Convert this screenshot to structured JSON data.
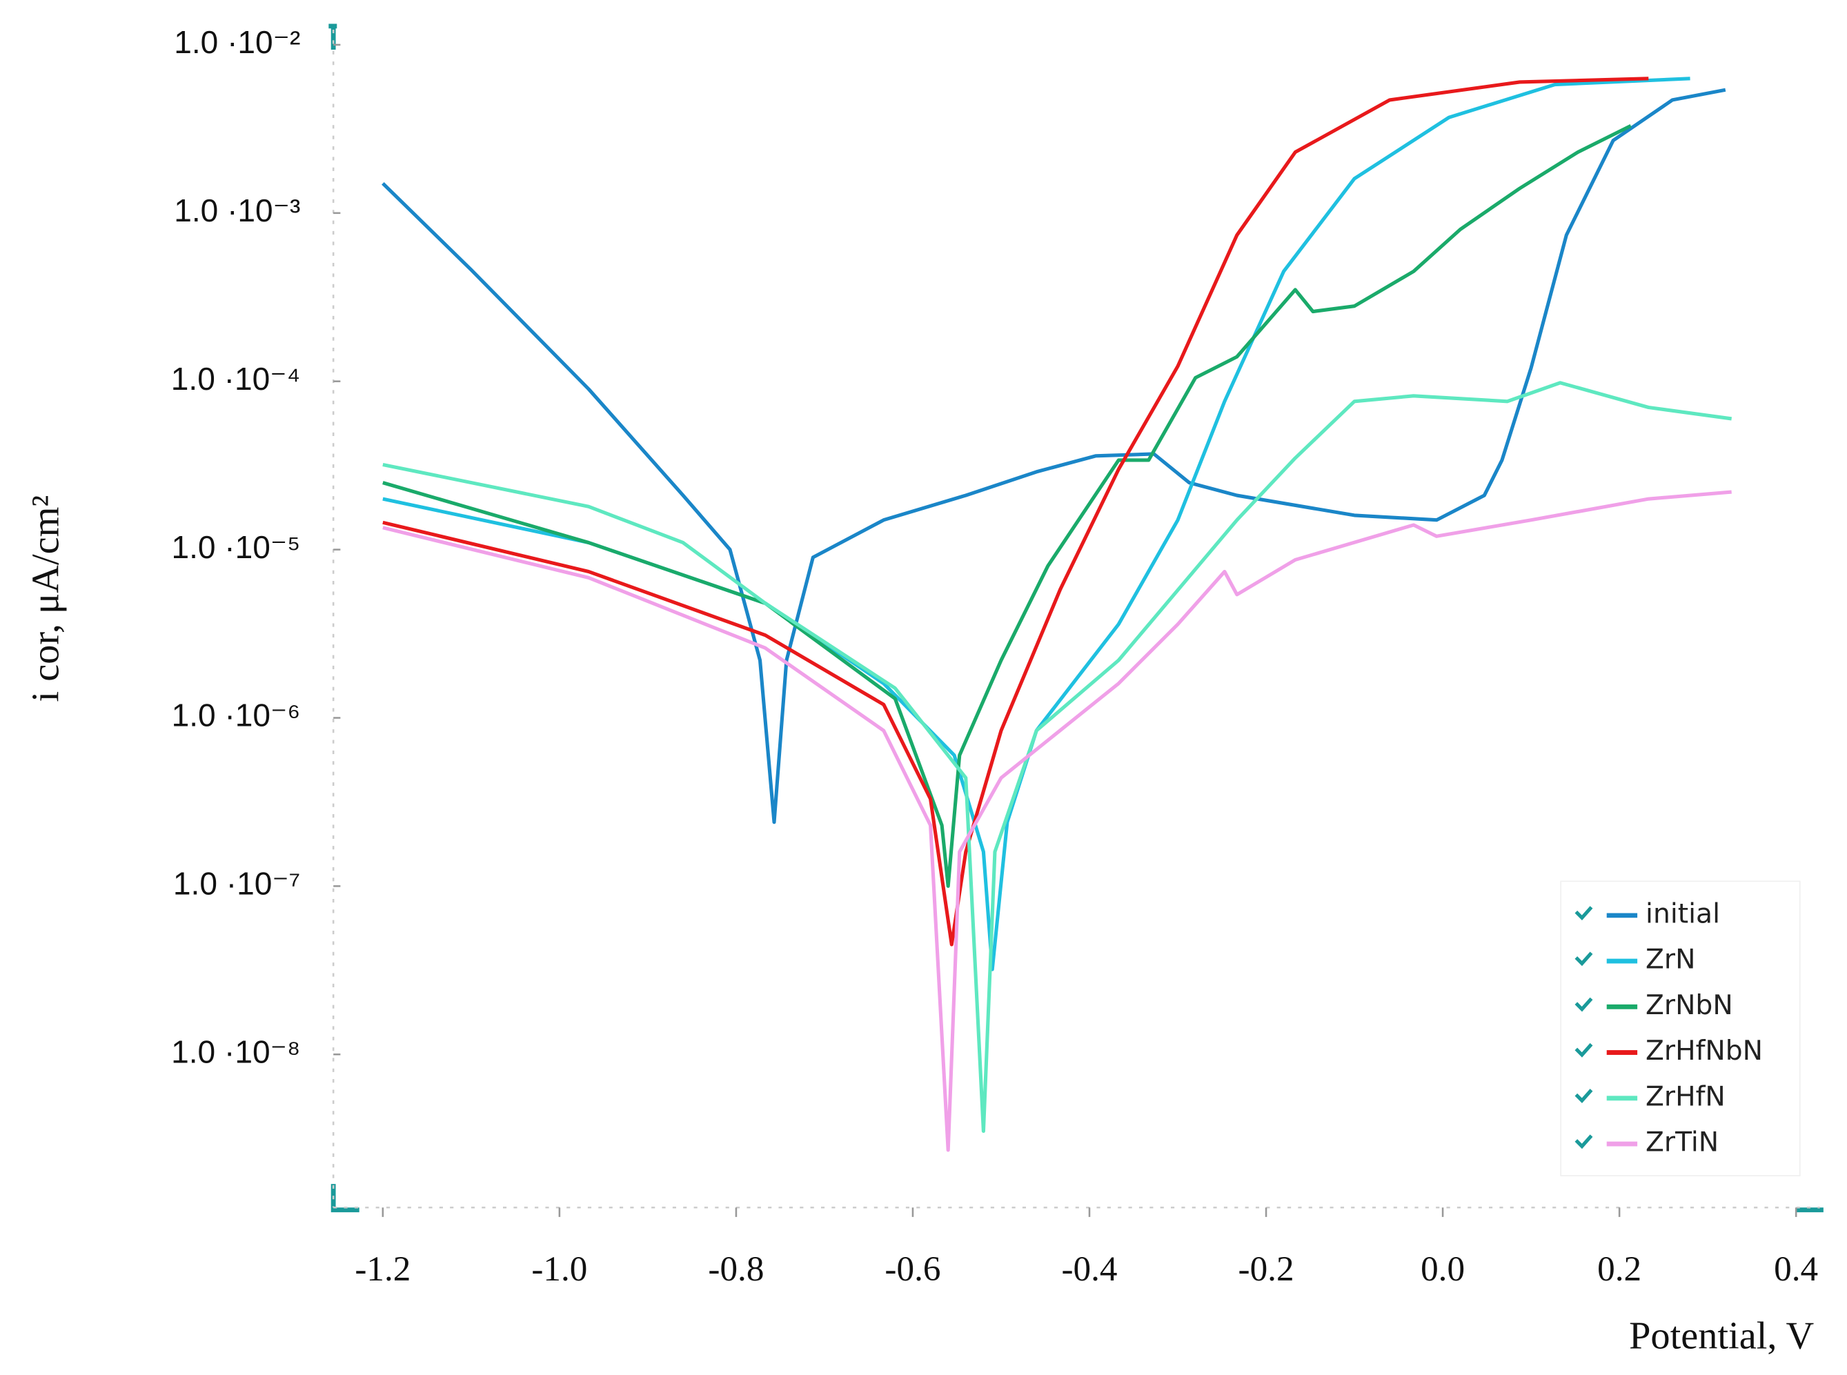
{
  "chart_data": {
    "type": "line",
    "x_label": "Potential, V",
    "y_label": "i cor, μA/cm²",
    "log_y": true,
    "legend_position": "lower right",
    "xlim": [
      -1.256,
      0.427
    ],
    "ylim": [
      1.23e-09,
      0.0123
    ],
    "xticks": [
      -1.2,
      {
        "value": -1,
        "label": "-1.0"
      },
      -0.8,
      -0.6,
      -0.4,
      -0.2,
      {
        "value": 0,
        "label": "0.0"
      },
      0.2,
      0.4
    ],
    "yticks": [
      {
        "value": 0.01,
        "label": "1.0 ·10⁻²"
      },
      {
        "value": 0.001,
        "label": "1.0 ·10⁻³"
      },
      {
        "value": 0.0001,
        "label": "1.0 ·10⁻⁴"
      },
      {
        "value": 1e-05,
        "label": "1.0 ·10⁻⁵"
      },
      {
        "value": 1e-06,
        "label": "1.0 ·10⁻⁶"
      },
      {
        "value": 1e-07,
        "label": "1.0 ·10⁻⁷"
      },
      {
        "value": 1e-08,
        "label": "1.0 ·10⁻⁸"
      }
    ],
    "series": [
      {
        "name": "initial",
        "color": "#1a86c8",
        "x": [
          -1.2,
          -1.1,
          -0.967,
          -0.86,
          -0.807,
          -0.773,
          -0.757,
          -0.743,
          -0.713,
          -0.633,
          -0.54,
          -0.46,
          -0.393,
          -0.327,
          -0.287,
          -0.233,
          -0.1,
          -0.007,
          0.047,
          0.067,
          0.1,
          0.14,
          0.193,
          0.26,
          0.32
        ],
        "values": [
          0.0015,
          0.00046,
          9e-05,
          2.1e-05,
          1e-05,
          2.2e-06,
          2.4e-07,
          2.2e-06,
          9e-06,
          1.5e-05,
          2.1e-05,
          2.9e-05,
          3.6e-05,
          3.7e-05,
          2.5e-05,
          2.1e-05,
          1.6e-05,
          1.5e-05,
          2.1e-05,
          3.4e-05,
          0.00012,
          0.00074,
          0.0027,
          0.0047,
          0.0054
        ]
      },
      {
        "name": "ZrN",
        "color": "#1fc0e0",
        "x": [
          -1.2,
          -0.967,
          -0.767,
          -0.633,
          -0.553,
          -0.52,
          -0.51,
          -0.493,
          -0.46,
          -0.367,
          -0.3,
          -0.247,
          -0.18,
          -0.1,
          0.007,
          0.127,
          0.28
        ],
        "values": [
          2e-05,
          1.1e-05,
          4.8e-06,
          1.6e-06,
          6e-07,
          1.6e-07,
          3.2e-08,
          2.4e-07,
          8.4e-07,
          3.6e-06,
          1.5e-05,
          7.6e-05,
          0.00045,
          0.0016,
          0.0037,
          0.0058,
          0.0063
        ]
      },
      {
        "name": "ZrNbN",
        "color": "#1aaa6a",
        "x": [
          -1.2,
          -0.967,
          -0.767,
          -0.62,
          -0.567,
          -0.56,
          -0.547,
          -0.5,
          -0.447,
          -0.367,
          -0.333,
          -0.28,
          -0.233,
          -0.167,
          -0.147,
          -0.1,
          -0.033,
          0.02,
          0.087,
          0.153,
          0.213
        ],
        "values": [
          2.5e-05,
          1.1e-05,
          4.8e-06,
          1.3e-06,
          2.3e-07,
          1e-07,
          6e-07,
          2.2e-06,
          8e-06,
          3.4e-05,
          3.4e-05,
          0.000105,
          0.00014,
          0.00035,
          0.00026,
          0.00028,
          0.00045,
          0.0008,
          0.0014,
          0.0023,
          0.0033
        ]
      },
      {
        "name": "ZrHfNbN",
        "color": "#e8191b",
        "x": [
          -1.2,
          -0.967,
          -0.767,
          -0.633,
          -0.58,
          -0.556,
          -0.54,
          -0.5,
          -0.433,
          -0.367,
          -0.3,
          -0.233,
          -0.167,
          -0.06,
          0.087,
          0.233
        ],
        "values": [
          1.45e-05,
          7.4e-06,
          3.1e-06,
          1.2e-06,
          3.3e-07,
          4.5e-08,
          1.6e-07,
          8.4e-07,
          5.8e-06,
          3e-05,
          0.000123,
          0.00074,
          0.0023,
          0.0047,
          0.006,
          0.0063
        ]
      },
      {
        "name": "ZrHfN",
        "color": "#5ee8c0",
        "x": [
          -1.2,
          -0.967,
          -0.86,
          -0.767,
          -0.62,
          -0.54,
          -0.52,
          -0.507,
          -0.46,
          -0.367,
          -0.233,
          -0.167,
          -0.1,
          -0.033,
          0.073,
          0.133,
          0.233,
          0.327
        ],
        "values": [
          3.2e-05,
          1.8e-05,
          1.1e-05,
          4.8e-06,
          1.5e-06,
          4.4e-07,
          3.5e-09,
          1.6e-07,
          8.4e-07,
          2.2e-06,
          1.5e-05,
          3.5e-05,
          7.6e-05,
          8.2e-05,
          7.6e-05,
          9.8e-05,
          7e-05,
          6e-05
        ]
      },
      {
        "name": "ZrTiN",
        "color": "#f0a0e8",
        "x": [
          -1.2,
          -0.967,
          -0.767,
          -0.633,
          -0.58,
          -0.56,
          -0.547,
          -0.5,
          -0.367,
          -0.3,
          -0.247,
          -0.233,
          -0.167,
          -0.033,
          -0.007,
          0.1,
          0.233,
          0.327
        ],
        "values": [
          1.35e-05,
          6.8e-06,
          2.6e-06,
          8.4e-07,
          2.3e-07,
          2.7e-09,
          1.6e-07,
          4.4e-07,
          1.6e-06,
          3.6e-06,
          7.4e-06,
          5.4e-06,
          8.7e-06,
          1.4e-05,
          1.2e-05,
          1.5e-05,
          2e-05,
          2.2e-05
        ]
      }
    ]
  }
}
